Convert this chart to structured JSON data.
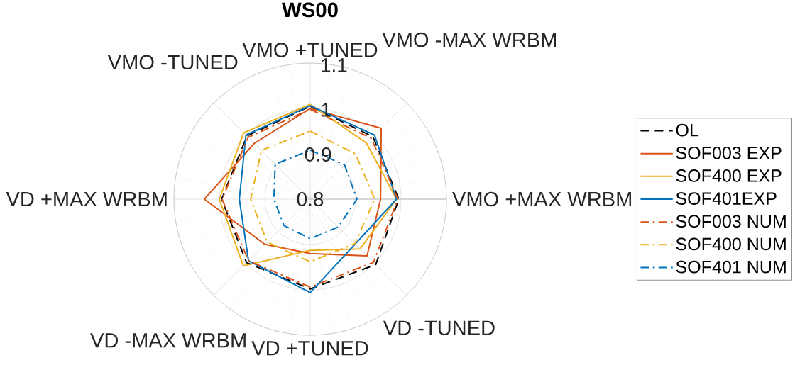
{
  "chart_data": {
    "type": "radar",
    "title": "WS00",
    "categories": [
      "VMO +TUNED",
      "VMO -MAX WRBM",
      "VMO +MAX WRBM",
      "VD -TUNED",
      "VD +TUNED",
      "VD -MAX WRBM",
      "VD +MAX WRBM",
      "VMO -TUNED"
    ],
    "series": [
      {
        "name": "OL",
        "color": "#000000",
        "line_style": "dashed",
        "values": [
          1.005,
          0.995,
          0.995,
          1.004,
          0.998,
          0.998,
          0.995,
          0.997
        ]
      },
      {
        "name": "SOF003 EXP",
        "color": "#d95319",
        "line_style": "solid",
        "values": [
          1.0,
          1.021,
          0.955,
          0.977,
          0.92,
          0.941,
          1.033,
          0.974
        ]
      },
      {
        "name": "SOF400 EXP",
        "color": "#edb120",
        "line_style": "solid",
        "values": [
          1.009,
          0.975,
          0.99,
          0.955,
          0.913,
          1.008,
          1.0,
          1.007
        ]
      },
      {
        "name": "SOF401EXP",
        "color": "#0072bd",
        "line_style": "solid",
        "values": [
          1.006,
          1.0,
          0.99,
          0.94,
          1.006,
          0.992,
          0.956,
          1.0
        ]
      },
      {
        "name": "SOF003 NUM",
        "color": "#d95319",
        "line_style": "dashdot",
        "values": [
          0.998,
          0.99,
          0.993,
          0.997,
          0.994,
          0.992,
          0.994,
          0.993
        ]
      },
      {
        "name": "SOF400 NUM",
        "color": "#edb120",
        "line_style": "dashdot",
        "values": [
          0.95,
          0.941,
          0.942,
          0.939,
          0.938,
          0.934,
          0.931,
          0.952
        ]
      },
      {
        "name": "SOF401 NUM",
        "color": "#0072bd",
        "line_style": "dashdot",
        "values": [
          0.908,
          0.907,
          0.903,
          0.887,
          0.887,
          0.882,
          0.88,
          0.909
        ]
      }
    ],
    "ylim": [
      0.8,
      1.1
    ],
    "yticks": [
      0.8,
      0.9,
      1,
      1.1
    ],
    "grid": true,
    "legend": "right"
  }
}
